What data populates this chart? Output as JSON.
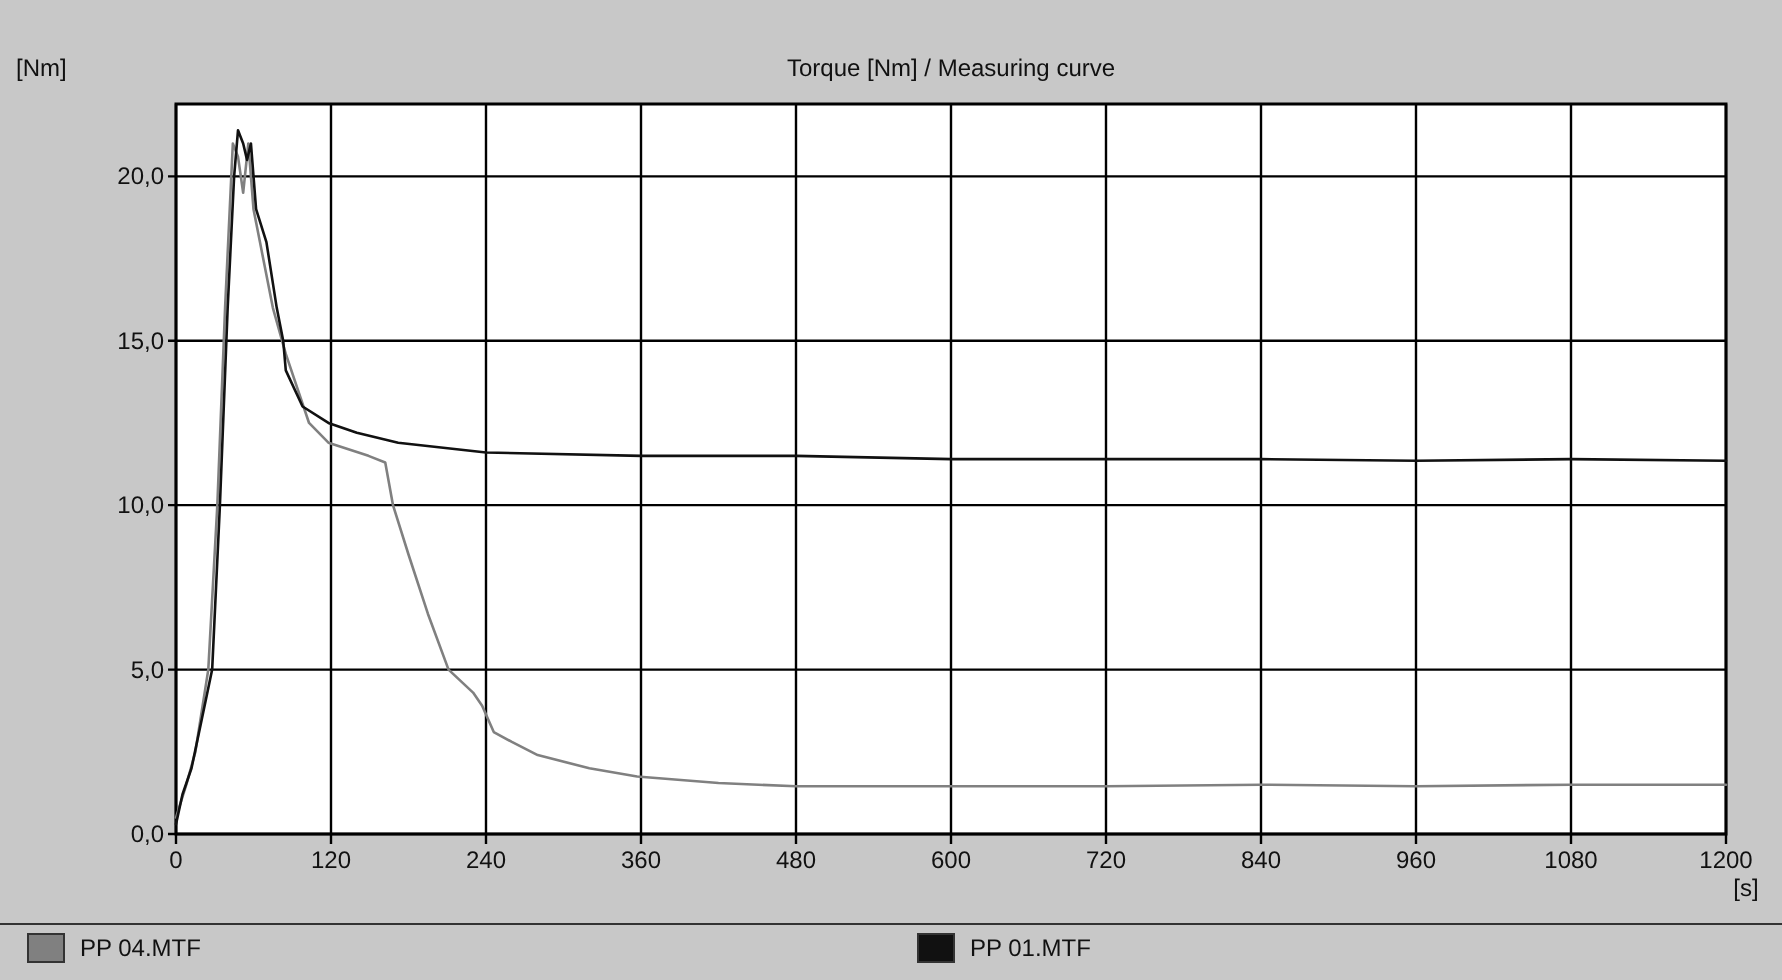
{
  "chart_data": {
    "type": "line",
    "title": "Torque [Nm] / Measuring curve",
    "xlabel": "[s]",
    "ylabel": "[Nm]",
    "xlim": [
      0,
      1200
    ],
    "xticks": [
      0,
      120,
      240,
      360,
      480,
      600,
      720,
      840,
      960,
      1080,
      1200
    ],
    "ylim": [
      0,
      22.2
    ],
    "yticks": [
      {
        "value": 0,
        "label": "0,0"
      },
      {
        "value": 5,
        "label": "5,0"
      },
      {
        "value": 10,
        "label": "10,0"
      },
      {
        "value": 15,
        "label": "15,0"
      },
      {
        "value": 20,
        "label": "20,0"
      }
    ],
    "grid": true,
    "legend": "bottom",
    "marker": "none",
    "line_style": "solid",
    "series": [
      {
        "name": "PP 04.MTF",
        "color": "#808080",
        "x": [
          0,
          8,
          15,
          25,
          32,
          38,
          44,
          48,
          52,
          56,
          60,
          65,
          75,
          85,
          103,
          118,
          149,
          162,
          168,
          180,
          195,
          211,
          230,
          237,
          246,
          260,
          280,
          320,
          357,
          420,
          480,
          600,
          720,
          840,
          960,
          1080,
          1200
        ],
        "values": [
          0.5,
          1.5,
          2.5,
          5,
          10,
          16,
          21.0,
          20.6,
          19.5,
          21.0,
          19.0,
          18.0,
          16.0,
          14.6,
          12.5,
          11.9,
          11.5,
          11.3,
          10,
          8.5,
          6.7,
          5,
          4.3,
          3.9,
          3.1,
          2.8,
          2.4,
          2.0,
          1.75,
          1.55,
          1.45,
          1.45,
          1.45,
          1.5,
          1.45,
          1.5,
          1.5
        ]
      },
      {
        "name": "PP 01.MTF",
        "color": "#111111",
        "x": [
          0,
          5,
          12,
          20,
          28,
          34,
          40,
          45,
          48,
          52,
          55,
          58,
          62,
          70,
          78,
          83,
          85,
          98,
          118,
          140,
          172,
          240,
          360,
          480,
          600,
          720,
          840,
          960,
          1080,
          1200
        ],
        "values": [
          0.3,
          1.2,
          2.0,
          3.5,
          5,
          10,
          16,
          20,
          21.4,
          21.0,
          20.5,
          21.0,
          19.0,
          18.0,
          16,
          15,
          14.1,
          13.0,
          12.5,
          12.2,
          11.9,
          11.6,
          11.5,
          11.5,
          11.4,
          11.4,
          11.4,
          11.35,
          11.4,
          11.35
        ]
      }
    ]
  }
}
